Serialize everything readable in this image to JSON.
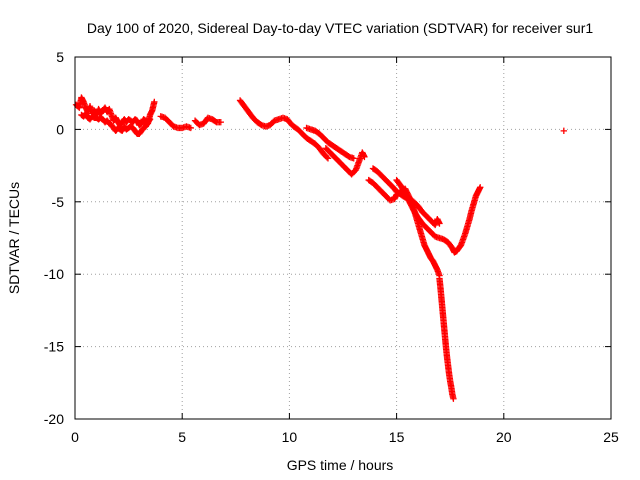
{
  "chart_data": {
    "type": "scatter",
    "title": "Day 100 of 2020, Sidereal Day-to-day VTEC variation (SDTVAR) for receiver sur1",
    "xlabel": "GPS time / hours",
    "ylabel": "SDTVAR / TECUs",
    "xlim": [
      0,
      25
    ],
    "ylim": [
      -20,
      5
    ],
    "xticks": [
      "0",
      "5",
      "10",
      "15",
      "20",
      "25"
    ],
    "yticks": [
      "5",
      "0",
      "-5",
      "-10",
      "-15",
      "-20"
    ],
    "grid": true,
    "marker": "plus",
    "color": "#ff0000",
    "series": [
      {
        "name": "sur1",
        "segments": [
          [
            [
              0.05,
              1.7
            ],
            [
              0.2,
              1.5
            ],
            [
              0.3,
              2.2
            ],
            [
              0.4,
              1.9
            ],
            [
              0.5,
              1.5
            ],
            [
              0.6,
              1.2
            ],
            [
              0.7,
              1.6
            ],
            [
              0.8,
              1.1
            ],
            [
              0.9,
              1.3
            ],
            [
              1.0,
              1.0
            ],
            [
              1.1,
              1.4
            ],
            [
              1.2,
              1.1
            ],
            [
              1.3,
              1.3
            ],
            [
              1.4,
              1.5
            ],
            [
              1.5,
              1.2
            ],
            [
              1.6,
              1.4
            ],
            [
              1.7,
              1.0
            ],
            [
              1.8,
              0.6
            ],
            [
              1.9,
              0.8
            ],
            [
              2.0,
              0.5
            ],
            [
              2.1,
              0.3
            ],
            [
              2.2,
              0.5
            ],
            [
              2.3,
              0.7
            ],
            [
              2.4,
              0.5
            ],
            [
              2.5,
              0.7
            ],
            [
              2.6,
              0.6
            ],
            [
              2.7,
              0.5
            ],
            [
              2.8,
              0.7
            ],
            [
              2.9,
              0.6
            ],
            [
              3.0,
              0.3
            ],
            [
              3.1,
              0.4
            ],
            [
              3.2,
              0.7
            ],
            [
              3.3,
              0.6
            ],
            [
              3.4,
              0.4
            ],
            [
              3.5,
              1.0
            ],
            [
              3.6,
              1.3
            ],
            [
              3.7,
              1.9
            ]
          ],
          [
            [
              0.3,
              1.0
            ],
            [
              0.4,
              0.9
            ],
            [
              0.5,
              1.1
            ],
            [
              0.6,
              0.8
            ],
            [
              0.7,
              0.7
            ],
            [
              0.8,
              0.9
            ],
            [
              0.9,
              0.8
            ],
            [
              1.0,
              0.8
            ],
            [
              1.1,
              0.7
            ],
            [
              1.2,
              0.8
            ],
            [
              1.3,
              0.7
            ],
            [
              1.4,
              0.5
            ],
            [
              1.5,
              0.6
            ],
            [
              1.6,
              0.4
            ],
            [
              1.7,
              0.3
            ],
            [
              1.8,
              0.1
            ],
            [
              1.9,
              -0.1
            ],
            [
              2.0,
              0.1
            ],
            [
              2.1,
              0.0
            ],
            [
              2.2,
              -0.1
            ],
            [
              2.3,
              0.2
            ],
            [
              2.4,
              0.0
            ],
            [
              2.5,
              0.1
            ],
            [
              2.6,
              0.2
            ],
            [
              2.7,
              0.1
            ],
            [
              2.8,
              -0.1
            ],
            [
              2.9,
              -0.3
            ],
            [
              3.0,
              -0.3
            ],
            [
              3.1,
              -0.1
            ],
            [
              3.2,
              0.1
            ],
            [
              3.3,
              0.2
            ],
            [
              3.4,
              0.5
            ],
            [
              3.5,
              0.7
            ]
          ],
          [
            [
              4.0,
              0.9
            ],
            [
              4.2,
              0.8
            ],
            [
              4.4,
              0.5
            ],
            [
              4.6,
              0.2
            ],
            [
              4.8,
              0.1
            ],
            [
              5.0,
              0.1
            ],
            [
              5.2,
              0.2
            ],
            [
              5.4,
              0.1
            ]
          ],
          [
            [
              5.6,
              0.6
            ],
            [
              5.8,
              0.3
            ],
            [
              6.0,
              0.4
            ],
            [
              6.2,
              0.8
            ],
            [
              6.4,
              0.7
            ],
            [
              6.6,
              0.5
            ],
            [
              6.8,
              0.5
            ]
          ],
          [
            [
              7.7,
              2.0
            ],
            [
              7.9,
              1.6
            ],
            [
              8.1,
              1.2
            ],
            [
              8.3,
              0.8
            ],
            [
              8.5,
              0.5
            ],
            [
              8.7,
              0.3
            ],
            [
              8.9,
              0.2
            ],
            [
              9.1,
              0.3
            ],
            [
              9.3,
              0.6
            ],
            [
              9.5,
              0.7
            ],
            [
              9.7,
              0.8
            ],
            [
              9.9,
              0.7
            ],
            [
              10.0,
              0.5
            ],
            [
              10.2,
              0.2
            ],
            [
              10.4,
              0.0
            ],
            [
              10.6,
              -0.3
            ],
            [
              10.8,
              -0.6
            ],
            [
              11.0,
              -0.8
            ],
            [
              11.2,
              -1.0
            ],
            [
              11.4,
              -1.3
            ],
            [
              11.6,
              -1.7
            ],
            [
              11.8,
              -2.0
            ]
          ],
          [
            [
              10.8,
              0.1
            ],
            [
              11.0,
              0.0
            ],
            [
              11.2,
              -0.1
            ],
            [
              11.4,
              -0.3
            ],
            [
              11.6,
              -0.6
            ],
            [
              11.8,
              -0.9
            ],
            [
              12.0,
              -1.1
            ],
            [
              12.2,
              -1.3
            ],
            [
              12.4,
              -1.5
            ],
            [
              12.6,
              -1.7
            ],
            [
              12.8,
              -1.9
            ],
            [
              13.0,
              -2.0
            ]
          ],
          [
            [
              11.7,
              -1.3
            ],
            [
              11.9,
              -1.6
            ],
            [
              12.1,
              -1.9
            ],
            [
              12.3,
              -2.2
            ],
            [
              12.5,
              -2.5
            ],
            [
              12.7,
              -2.8
            ],
            [
              12.9,
              -3.1
            ],
            [
              13.1,
              -2.8
            ],
            [
              13.3,
              -2.0
            ],
            [
              13.4,
              -1.6
            ],
            [
              13.5,
              -1.9
            ]
          ],
          [
            [
              13.9,
              -2.7
            ],
            [
              14.1,
              -2.9
            ],
            [
              14.3,
              -3.2
            ],
            [
              14.5,
              -3.5
            ],
            [
              14.7,
              -3.8
            ],
            [
              14.9,
              -4.1
            ],
            [
              15.0,
              -4.3
            ],
            [
              15.2,
              -4.5
            ],
            [
              15.4,
              -4.7
            ],
            [
              15.6,
              -4.8
            ],
            [
              15.8,
              -5.0
            ],
            [
              16.0,
              -5.3
            ],
            [
              16.2,
              -5.7
            ],
            [
              16.4,
              -6.0
            ],
            [
              16.6,
              -6.3
            ],
            [
              16.8,
              -6.6
            ],
            [
              16.9,
              -6.2
            ],
            [
              17.0,
              -6.5
            ]
          ],
          [
            [
              13.7,
              -3.5
            ],
            [
              13.9,
              -3.7
            ],
            [
              14.1,
              -4.0
            ],
            [
              14.3,
              -4.3
            ],
            [
              14.5,
              -4.6
            ],
            [
              14.7,
              -4.9
            ],
            [
              14.9,
              -4.8
            ],
            [
              15.0,
              -4.5
            ],
            [
              15.2,
              -4.3
            ],
            [
              15.4,
              -4.1
            ],
            [
              15.6,
              -4.7
            ],
            [
              15.8,
              -5.5
            ],
            [
              15.9,
              -6.0
            ],
            [
              16.0,
              -6.5
            ],
            [
              16.1,
              -7.0
            ],
            [
              16.2,
              -7.5
            ],
            [
              16.3,
              -8.0
            ],
            [
              16.4,
              -8.3
            ],
            [
              16.5,
              -8.6
            ],
            [
              16.6,
              -8.9
            ],
            [
              16.7,
              -9.1
            ],
            [
              16.8,
              -9.4
            ],
            [
              16.9,
              -9.7
            ],
            [
              17.0,
              -10.1
            ]
          ],
          [
            [
              15.0,
              -3.5
            ],
            [
              15.2,
              -3.9
            ],
            [
              15.4,
              -4.4
            ],
            [
              15.6,
              -5.0
            ],
            [
              15.8,
              -5.6
            ],
            [
              16.0,
              -6.1
            ],
            [
              16.2,
              -6.5
            ],
            [
              16.4,
              -6.8
            ],
            [
              16.6,
              -7.1
            ],
            [
              16.8,
              -7.4
            ],
            [
              17.0,
              -7.5
            ],
            [
              17.2,
              -7.6
            ],
            [
              17.4,
              -7.8
            ],
            [
              17.6,
              -8.2
            ],
            [
              17.7,
              -8.5
            ],
            [
              17.8,
              -8.4
            ]
          ],
          [
            [
              17.0,
              -10.3
            ],
            [
              17.05,
              -11.0
            ],
            [
              17.1,
              -11.8
            ],
            [
              17.15,
              -12.6
            ],
            [
              17.2,
              -13.4
            ],
            [
              17.25,
              -14.2
            ],
            [
              17.3,
              -15.0
            ],
            [
              17.35,
              -15.7
            ],
            [
              17.4,
              -16.3
            ],
            [
              17.45,
              -16.9
            ],
            [
              17.5,
              -17.4
            ],
            [
              17.55,
              -17.8
            ],
            [
              17.6,
              -18.3
            ],
            [
              17.65,
              -18.6
            ]
          ],
          [
            [
              17.8,
              -8.4
            ],
            [
              17.9,
              -8.2
            ],
            [
              18.0,
              -8.0
            ],
            [
              18.1,
              -7.6
            ],
            [
              18.2,
              -7.2
            ],
            [
              18.3,
              -6.7
            ],
            [
              18.4,
              -6.2
            ],
            [
              18.5,
              -5.6
            ],
            [
              18.6,
              -5.1
            ],
            [
              18.7,
              -4.6
            ],
            [
              18.8,
              -4.3
            ],
            [
              18.9,
              -4.0
            ]
          ],
          [
            [
              22.8,
              -0.1
            ]
          ]
        ]
      }
    ]
  }
}
